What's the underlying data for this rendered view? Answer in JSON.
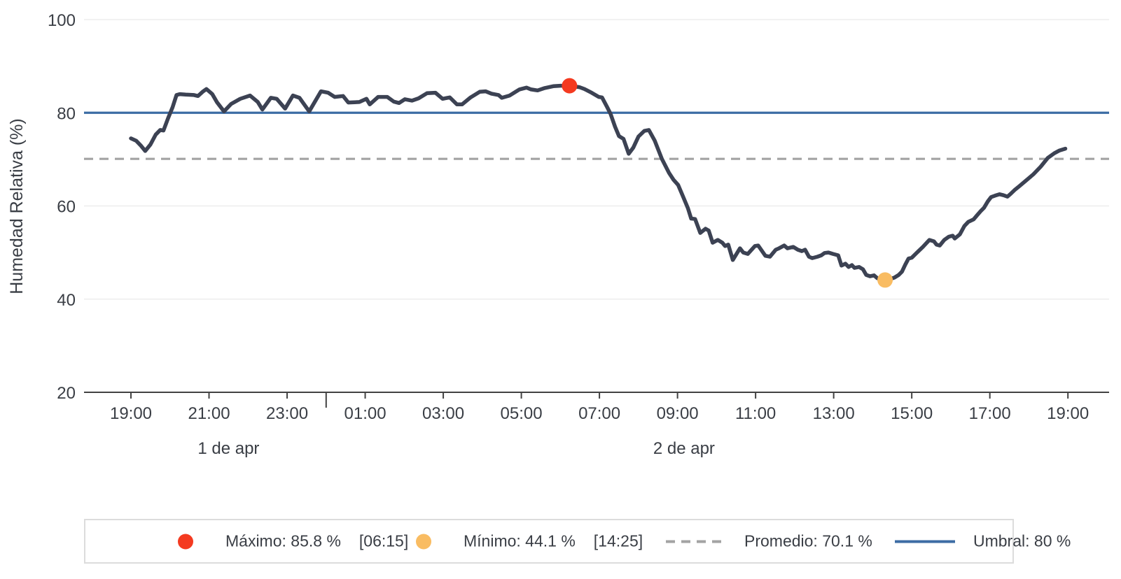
{
  "chart_data": {
    "type": "line",
    "title": "",
    "xlabel": "",
    "ylabel": "Humedad Relativa (%)",
    "ylim": [
      20,
      100
    ],
    "y_ticks": [
      20,
      40,
      60,
      80,
      100
    ],
    "grid": "horizontal-faint",
    "legend_position": "bottom",
    "x_ticks": {
      "minutes": [
        0,
        120,
        240,
        360,
        480,
        600,
        720,
        840,
        960,
        1080,
        1200,
        1320,
        1440
      ],
      "labels": [
        "19:00",
        "21:00",
        "23:00",
        "01:00",
        "03:00",
        "05:00",
        "07:00",
        "09:00",
        "11:00",
        "13:00",
        "15:00",
        "17:00",
        "19:00"
      ]
    },
    "day_divider_minute": 300,
    "day_labels": [
      {
        "minute": 150,
        "label": "1 de apr"
      },
      {
        "minute": 850,
        "label": "2 de apr"
      }
    ],
    "series": {
      "name": "Humedad Relativa",
      "color": "#3c4253",
      "points": [
        [
          0,
          74.5
        ],
        [
          8,
          74.0
        ],
        [
          15,
          73.0
        ],
        [
          22,
          71.8
        ],
        [
          30,
          73.2
        ],
        [
          38,
          75.3
        ],
        [
          45,
          76.3
        ],
        [
          50,
          76.2
        ],
        [
          57,
          78.8
        ],
        [
          64,
          81.2
        ],
        [
          70,
          83.8
        ],
        [
          75,
          84.0
        ],
        [
          84,
          83.9
        ],
        [
          97,
          83.8
        ],
        [
          103,
          83.6
        ],
        [
          111,
          84.6
        ],
        [
          116,
          85.1
        ],
        [
          125,
          84.0
        ],
        [
          132,
          82.3
        ],
        [
          143,
          80.3
        ],
        [
          154,
          81.9
        ],
        [
          168,
          83.0
        ],
        [
          183,
          83.7
        ],
        [
          195,
          82.3
        ],
        [
          202,
          80.7
        ],
        [
          215,
          83.2
        ],
        [
          224,
          83.0
        ],
        [
          237,
          80.9
        ],
        [
          249,
          83.7
        ],
        [
          259,
          83.2
        ],
        [
          274,
          80.3
        ],
        [
          292,
          84.6
        ],
        [
          303,
          84.3
        ],
        [
          313,
          83.4
        ],
        [
          326,
          83.6
        ],
        [
          334,
          82.2
        ],
        [
          351,
          82.3
        ],
        [
          362,
          83.0
        ],
        [
          367,
          81.8
        ],
        [
          380,
          83.4
        ],
        [
          394,
          83.4
        ],
        [
          404,
          82.4
        ],
        [
          412,
          82.1
        ],
        [
          421,
          82.9
        ],
        [
          432,
          82.6
        ],
        [
          442,
          83.1
        ],
        [
          455,
          84.2
        ],
        [
          468,
          84.3
        ],
        [
          479,
          83.0
        ],
        [
          490,
          83.3
        ],
        [
          501,
          81.8
        ],
        [
          509,
          81.8
        ],
        [
          522,
          83.3
        ],
        [
          536,
          84.5
        ],
        [
          545,
          84.6
        ],
        [
          554,
          84.1
        ],
        [
          565,
          83.8
        ],
        [
          570,
          83.2
        ],
        [
          582,
          83.7
        ],
        [
          597,
          85.0
        ],
        [
          608,
          85.4
        ],
        [
          615,
          85.0
        ],
        [
          625,
          84.8
        ],
        [
          636,
          85.3
        ],
        [
          649,
          85.7
        ],
        [
          660,
          85.8
        ],
        [
          674,
          85.8
        ],
        [
          689,
          85.5
        ],
        [
          697,
          85.1
        ],
        [
          708,
          84.3
        ],
        [
          719,
          83.4
        ],
        [
          724,
          83.3
        ],
        [
          732,
          81.2
        ],
        [
          737,
          79.8
        ],
        [
          744,
          77.0
        ],
        [
          750,
          75.0
        ],
        [
          757,
          74.4
        ],
        [
          765,
          71.2
        ],
        [
          772,
          72.5
        ],
        [
          780,
          74.9
        ],
        [
          789,
          76.1
        ],
        [
          796,
          76.3
        ],
        [
          805,
          74.0
        ],
        [
          816,
          70.1
        ],
        [
          827,
          67.1
        ],
        [
          834,
          65.6
        ],
        [
          841,
          64.5
        ],
        [
          848,
          62.2
        ],
        [
          856,
          59.5
        ],
        [
          861,
          57.3
        ],
        [
          867,
          57.2
        ],
        [
          875,
          54.2
        ],
        [
          883,
          55.1
        ],
        [
          888,
          54.7
        ],
        [
          894,
          52.1
        ],
        [
          902,
          52.7
        ],
        [
          909,
          52.1
        ],
        [
          913,
          51.4
        ],
        [
          918,
          51.7
        ],
        [
          925,
          48.4
        ],
        [
          936,
          50.9
        ],
        [
          941,
          50.0
        ],
        [
          948,
          49.7
        ],
        [
          959,
          51.4
        ],
        [
          964,
          51.5
        ],
        [
          975,
          49.3
        ],
        [
          982,
          49.1
        ],
        [
          991,
          50.6
        ],
        [
          996,
          50.9
        ],
        [
          1004,
          51.5
        ],
        [
          1009,
          50.9
        ],
        [
          1018,
          51.2
        ],
        [
          1025,
          50.6
        ],
        [
          1031,
          50.3
        ],
        [
          1036,
          50.6
        ],
        [
          1042,
          49.1
        ],
        [
          1047,
          48.8
        ],
        [
          1055,
          49.1
        ],
        [
          1061,
          49.4
        ],
        [
          1066,
          49.9
        ],
        [
          1072,
          50.0
        ],
        [
          1079,
          49.7
        ],
        [
          1087,
          49.4
        ],
        [
          1092,
          47.2
        ],
        [
          1098,
          47.6
        ],
        [
          1103,
          46.9
        ],
        [
          1108,
          47.3
        ],
        [
          1112,
          46.7
        ],
        [
          1119,
          46.9
        ],
        [
          1125,
          46.4
        ],
        [
          1130,
          45.2
        ],
        [
          1136,
          44.9
        ],
        [
          1142,
          45.1
        ],
        [
          1147,
          44.5
        ],
        [
          1153,
          44.2
        ],
        [
          1159,
          44.1
        ],
        [
          1166,
          44.3
        ],
        [
          1173,
          44.6
        ],
        [
          1180,
          45.2
        ],
        [
          1185,
          45.9
        ],
        [
          1190,
          47.4
        ],
        [
          1195,
          48.7
        ],
        [
          1200,
          48.9
        ],
        [
          1206,
          49.7
        ],
        [
          1211,
          50.4
        ],
        [
          1217,
          51.2
        ],
        [
          1227,
          52.7
        ],
        [
          1234,
          52.4
        ],
        [
          1238,
          51.7
        ],
        [
          1243,
          51.5
        ],
        [
          1250,
          52.7
        ],
        [
          1257,
          53.4
        ],
        [
          1263,
          53.6
        ],
        [
          1266,
          53.0
        ],
        [
          1274,
          53.9
        ],
        [
          1281,
          55.7
        ],
        [
          1287,
          56.6
        ],
        [
          1295,
          57.1
        ],
        [
          1301,
          58.1
        ],
        [
          1306,
          58.9
        ],
        [
          1311,
          59.6
        ],
        [
          1317,
          61.0
        ],
        [
          1322,
          61.9
        ],
        [
          1328,
          62.2
        ],
        [
          1335,
          62.5
        ],
        [
          1341,
          62.3
        ],
        [
          1347,
          62.0
        ],
        [
          1352,
          62.6
        ],
        [
          1358,
          63.4
        ],
        [
          1365,
          64.2
        ],
        [
          1376,
          65.5
        ],
        [
          1387,
          66.8
        ],
        [
          1398,
          68.4
        ],
        [
          1409,
          70.3
        ],
        [
          1419,
          71.3
        ],
        [
          1427,
          71.9
        ],
        [
          1436,
          72.3
        ]
      ]
    },
    "annotations": {
      "max": {
        "label": "Máximo: 85.8 %",
        "time": "[06:15]",
        "minute": 674,
        "value": 85.8,
        "color": "#f43a20"
      },
      "min": {
        "label": "Mínimo: 44.1 %",
        "time": "[14:25]",
        "minute": 1159,
        "value": 44.1,
        "color": "#f9bc62"
      },
      "average": {
        "label": "Promedio: 70.1 %",
        "value": 70.1,
        "style": "dashed",
        "color": "#a3a3a3"
      },
      "threshold": {
        "label": "Umbral: 80 %",
        "value": 80,
        "style": "solid",
        "color": "#3c6ca4"
      }
    },
    "colors": {
      "grid": "#ededed",
      "axis": "#424242",
      "text": "#3a3e45"
    }
  }
}
